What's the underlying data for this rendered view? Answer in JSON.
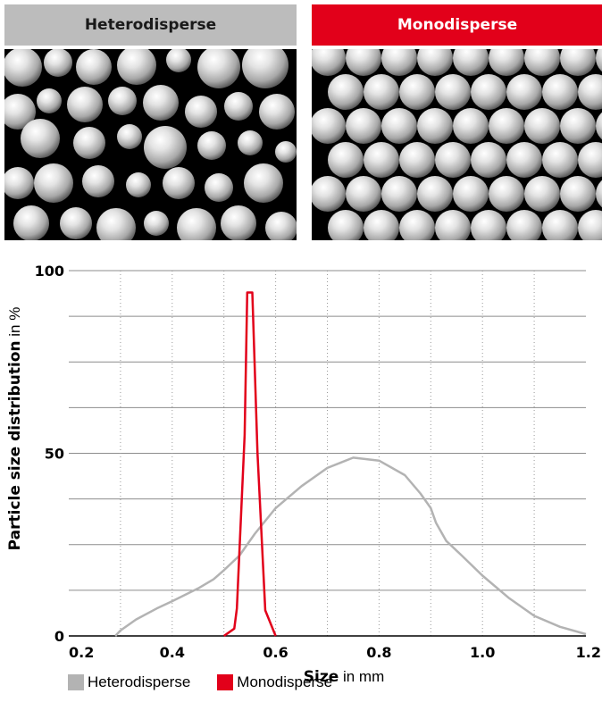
{
  "panels": {
    "heterodisperse": {
      "title": "Heterodisperse",
      "header_color": "#bcbcbc"
    },
    "monodisperse": {
      "title": "Monodisperse",
      "header_color": "#e2001a"
    }
  },
  "axis": {
    "ylabel_bold": "Particle size distribution",
    "ylabel_unit": " in %",
    "xlabel_bold": "Size",
    "xlabel_unit": " in mm"
  },
  "legend": [
    {
      "label": "Heterodisperse",
      "color": "#b3b3b3"
    },
    {
      "label": "Monodisperse",
      "color": "#e2001a"
    }
  ],
  "chart_data": {
    "type": "line",
    "xlim": [
      0.2,
      1.2
    ],
    "ylim": [
      0,
      100
    ],
    "x_ticks": [
      "0.2",
      "0.4",
      "0.6",
      "0.8",
      "1.0",
      "1.2"
    ],
    "y_ticks": [
      "0",
      "50",
      "100"
    ],
    "grid": "horizontal solid every 12.5, vertical dotted every 0.1",
    "legend_position": "bottom",
    "series": [
      {
        "name": "Heterodisperse",
        "color": "#b3b3b3",
        "points": [
          [
            0.29,
            0
          ],
          [
            0.3,
            1.5
          ],
          [
            0.33,
            4.5
          ],
          [
            0.37,
            7.5
          ],
          [
            0.4,
            9.5
          ],
          [
            0.45,
            13
          ],
          [
            0.48,
            15.5
          ],
          [
            0.5,
            18
          ],
          [
            0.53,
            22
          ],
          [
            0.56,
            28
          ],
          [
            0.6,
            35
          ],
          [
            0.65,
            41
          ],
          [
            0.7,
            46
          ],
          [
            0.75,
            48.8
          ],
          [
            0.8,
            48
          ],
          [
            0.85,
            44
          ],
          [
            0.88,
            39
          ],
          [
            0.9,
            35
          ],
          [
            0.91,
            31
          ],
          [
            0.93,
            26
          ],
          [
            0.96,
            22
          ],
          [
            1.0,
            16.5
          ],
          [
            1.05,
            10.5
          ],
          [
            1.1,
            5.5
          ],
          [
            1.15,
            2.5
          ],
          [
            1.2,
            0.5
          ]
        ]
      },
      {
        "name": "Monodisperse",
        "color": "#e2001a",
        "points": [
          [
            0.5,
            0
          ],
          [
            0.52,
            2
          ],
          [
            0.525,
            7.5
          ],
          [
            0.54,
            55
          ],
          [
            0.545,
            94
          ],
          [
            0.555,
            94
          ],
          [
            0.565,
            50
          ],
          [
            0.58,
            7
          ],
          [
            0.6,
            0
          ]
        ]
      }
    ]
  }
}
